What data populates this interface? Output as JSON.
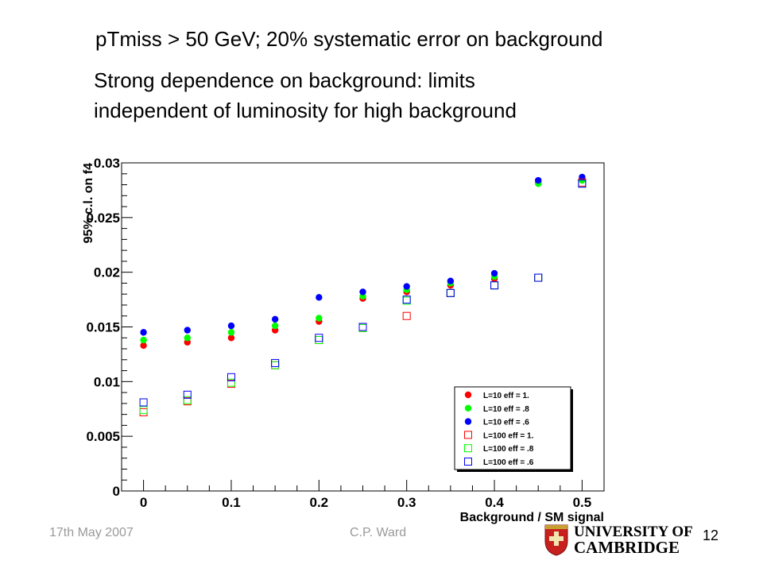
{
  "slide": {
    "title": "pTmiss > 50 GeV;  20% systematic error on background",
    "body_lines": [
      "Strong dependence on background: limits",
      "independent of luminosity for high background"
    ]
  },
  "footer": {
    "date": "17th May 2007",
    "author": "C.P. Ward",
    "page": "12",
    "logo_line1": "UNIVERSITY OF",
    "logo_line2": "CAMBRIDGE"
  },
  "chart_data": {
    "type": "scatter",
    "title": "",
    "xlabel": "Background / SM signal",
    "ylabel": "95% c.l. on f4",
    "xlim": [
      -0.025,
      0.525
    ],
    "ylim": [
      0,
      0.03
    ],
    "x_ticks": [
      0,
      0.1,
      0.2,
      0.3,
      0.4,
      0.5
    ],
    "x_tick_labels": [
      "0",
      "0.1",
      "0.2",
      "0.3",
      "0.4",
      "0.5"
    ],
    "y_ticks": [
      0,
      0.005,
      0.01,
      0.015,
      0.02,
      0.025,
      0.03
    ],
    "y_tick_labels": [
      "0",
      "0.005",
      "0.01",
      "0.015",
      "0.02",
      "0.025",
      "0.03"
    ],
    "grid": false,
    "legend_position": "bottom-right",
    "series": [
      {
        "name": "L=10 eff = 1.",
        "marker": "circle-filled",
        "color": "#ff0000",
        "x": [
          0,
          0.05,
          0.1,
          0.15,
          0.2,
          0.25,
          0.3,
          0.35,
          0.4,
          0.45,
          0.5
        ],
        "y": [
          0.0133,
          0.0136,
          0.014,
          0.0147,
          0.0155,
          0.0176,
          0.0182,
          0.0188,
          0.0194,
          0.0282,
          0.0285
        ]
      },
      {
        "name": "L=10 eff = .8",
        "marker": "circle-filled",
        "color": "#00ff00",
        "x": [
          0,
          0.05,
          0.1,
          0.15,
          0.2,
          0.25,
          0.3,
          0.35,
          0.4,
          0.45,
          0.5
        ],
        "y": [
          0.0138,
          0.014,
          0.0145,
          0.0151,
          0.0158,
          0.0178,
          0.0184,
          0.019,
          0.0196,
          0.0281,
          0.0284
        ]
      },
      {
        "name": "L=10 eff = .6",
        "marker": "circle-filled",
        "color": "#0000ff",
        "x": [
          0,
          0.05,
          0.1,
          0.15,
          0.2,
          0.25,
          0.3,
          0.35,
          0.4,
          0.45,
          0.5
        ],
        "y": [
          0.0145,
          0.0147,
          0.0151,
          0.0157,
          0.0177,
          0.0182,
          0.0187,
          0.0192,
          0.0199,
          0.0284,
          0.0287
        ]
      },
      {
        "name": "L=100 eff = 1.",
        "marker": "square-open",
        "color": "#ff0000",
        "x": [
          0,
          0.05,
          0.1,
          0.15,
          0.2,
          0.25,
          0.3,
          0.35,
          0.4,
          0.45,
          0.5
        ],
        "y": [
          0.0072,
          0.0082,
          0.0098,
          0.0115,
          0.0138,
          0.0149,
          0.016,
          0.0181,
          0.0188,
          0.0195,
          0.0282
        ]
      },
      {
        "name": "L=100 eff = .8",
        "marker": "square-open",
        "color": "#00ff00",
        "x": [
          0,
          0.05,
          0.1,
          0.15,
          0.2,
          0.25,
          0.3,
          0.35,
          0.4,
          0.45,
          0.5
        ],
        "y": [
          0.0074,
          0.0083,
          0.0099,
          0.0115,
          0.0138,
          0.0149,
          0.0174,
          0.0181,
          0.0188,
          0.0195,
          0.0281
        ]
      },
      {
        "name": "L=100 eff = .6",
        "marker": "square-open",
        "color": "#0000ff",
        "x": [
          0,
          0.05,
          0.1,
          0.15,
          0.2,
          0.25,
          0.3,
          0.35,
          0.4,
          0.45,
          0.5
        ],
        "y": [
          0.0081,
          0.0088,
          0.0104,
          0.0117,
          0.014,
          0.015,
          0.0175,
          0.0181,
          0.0188,
          0.0195,
          0.0281
        ]
      }
    ]
  }
}
